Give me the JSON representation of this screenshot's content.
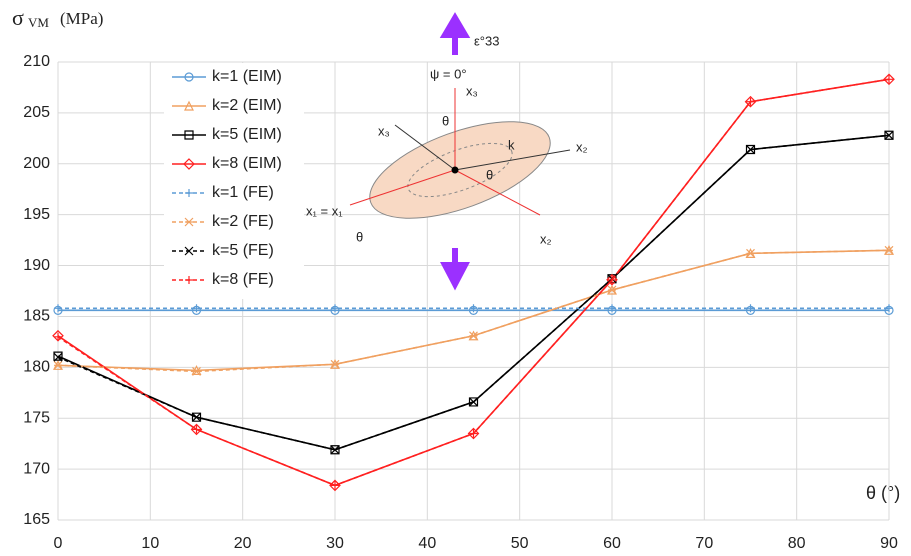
{
  "chart_data": {
    "type": "line",
    "y_label": "σ",
    "y_label_sub": "VM",
    "y_label_unit": "(MPa)",
    "x_label": "θ (°)",
    "x": [
      0,
      15,
      30,
      45,
      60,
      75,
      90
    ],
    "xlim": [
      0,
      90
    ],
    "xticks": [
      0,
      10,
      20,
      30,
      40,
      50,
      60,
      70,
      80,
      90
    ],
    "ylim": [
      165,
      210
    ],
    "yticks": [
      165,
      170,
      175,
      180,
      185,
      190,
      195,
      200,
      205,
      210
    ],
    "grid": true,
    "legend": "upper-left",
    "series": [
      {
        "name": "k=1 (EIM)",
        "color": "#5b9bd5",
        "marker": "circle",
        "dashed": false,
        "values": [
          185.6,
          185.6,
          185.6,
          185.6,
          185.6,
          185.6,
          185.6
        ]
      },
      {
        "name": "k=2 (EIM)",
        "color": "#f0a060",
        "marker": "triangle",
        "dashed": false,
        "values": [
          180.2,
          179.7,
          180.3,
          183.1,
          187.6,
          191.2,
          191.5
        ]
      },
      {
        "name": "k=5 (EIM)",
        "color": "#000000",
        "marker": "square",
        "dashed": false,
        "values": [
          181.1,
          175.1,
          171.9,
          176.6,
          188.7,
          201.4,
          202.8
        ]
      },
      {
        "name": "k=8 (EIM)",
        "color": "#ff2020",
        "marker": "diamond",
        "dashed": false,
        "values": [
          183.1,
          173.9,
          168.4,
          173.5,
          188.6,
          206.1,
          208.3
        ]
      },
      {
        "name": "k=1 (FE)",
        "color": "#5b9bd5",
        "marker": "plus",
        "dashed": true,
        "values": [
          185.8,
          185.8,
          185.8,
          185.8,
          185.8,
          185.8,
          185.8
        ]
      },
      {
        "name": "k=2 (FE)",
        "color": "#f0a060",
        "marker": "asterisk",
        "dashed": true,
        "values": [
          180.2,
          179.6,
          180.3,
          183.1,
          187.6,
          191.2,
          191.5
        ]
      },
      {
        "name": "k=5 (FE)",
        "color": "#000000",
        "marker": "cross",
        "dashed": true,
        "values": [
          181.0,
          175.1,
          171.9,
          176.6,
          188.7,
          201.4,
          202.8
        ]
      },
      {
        "name": "k=8 (FE)",
        "color": "#ff2020",
        "marker": "plus",
        "dashed": true,
        "values": [
          183.0,
          173.9,
          168.4,
          173.5,
          188.6,
          206.1,
          208.3
        ]
      }
    ],
    "annotations": [
      "ε°33",
      "ψ = 0°",
      "x₃",
      "x₃",
      "θ",
      "k",
      "x₂",
      "θ",
      "x₁ = x₁",
      "θ",
      "x₂"
    ]
  }
}
